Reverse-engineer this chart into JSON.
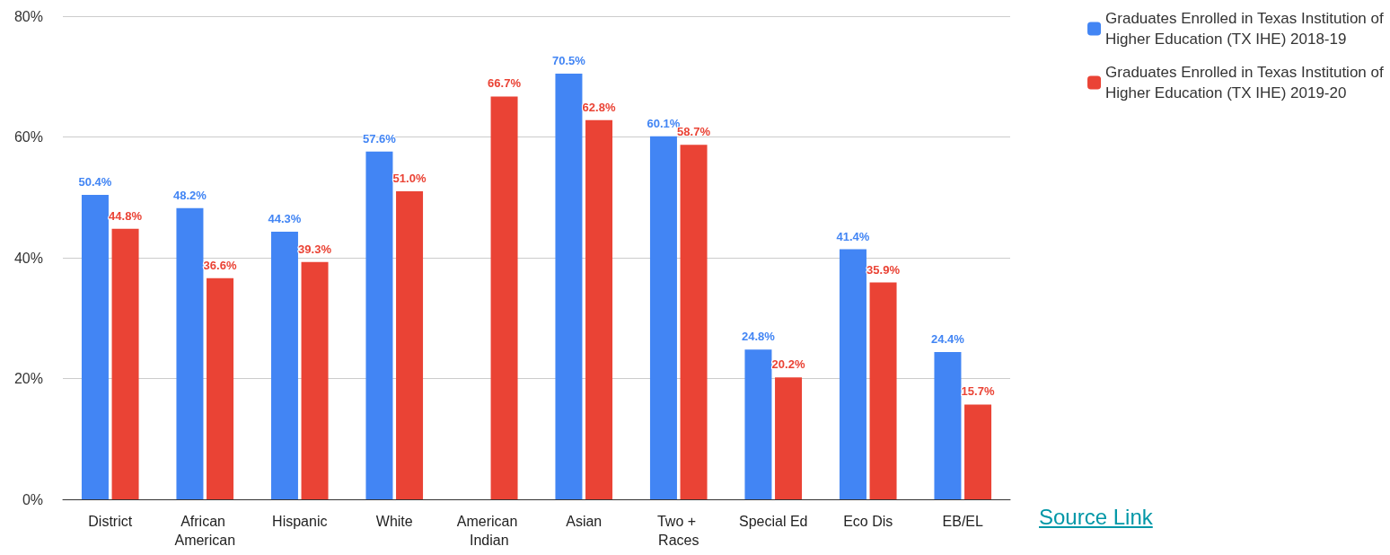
{
  "chart_data": {
    "type": "bar",
    "categories": [
      "District",
      "African American",
      "Hispanic",
      "White",
      "American Indian",
      "Asian",
      "Two + Races",
      "Special Ed",
      "Eco Dis",
      "EB/EL"
    ],
    "series": [
      {
        "name": "Graduates Enrolled in Texas Institution of Higher Education (TX IHE) 2018-19",
        "color": "#4285f4",
        "values": [
          50.4,
          48.2,
          44.3,
          57.6,
          null,
          70.5,
          60.1,
          24.8,
          41.4,
          24.4
        ],
        "value_labels": [
          "50.4%",
          "48.2%",
          "44.3%",
          "57.6%",
          null,
          "70.5%",
          "60.1%",
          "24.8%",
          "41.4%",
          "24.4%"
        ]
      },
      {
        "name": "Graduates Enrolled in Texas Institution of Higher Education (TX IHE) 2019-20",
        "color": "#ea4335",
        "values": [
          44.8,
          36.6,
          39.3,
          51.0,
          66.7,
          62.8,
          58.7,
          20.2,
          35.9,
          15.7
        ],
        "value_labels": [
          "44.8%",
          "36.6%",
          "39.3%",
          "51.0%",
          "66.7%",
          "62.8%",
          "58.7%",
          "20.2%",
          "35.9%",
          "15.7%"
        ]
      }
    ],
    "ylim": [
      0,
      80
    ],
    "yticks": [
      {
        "value": 0,
        "label": "0%"
      },
      {
        "value": 20,
        "label": "20%"
      },
      {
        "value": 40,
        "label": "40%"
      },
      {
        "value": 60,
        "label": "60%"
      },
      {
        "value": 80,
        "label": "80%"
      }
    ],
    "grid": "y",
    "legend": "top right",
    "annotations": [
      "Source Link"
    ]
  }
}
